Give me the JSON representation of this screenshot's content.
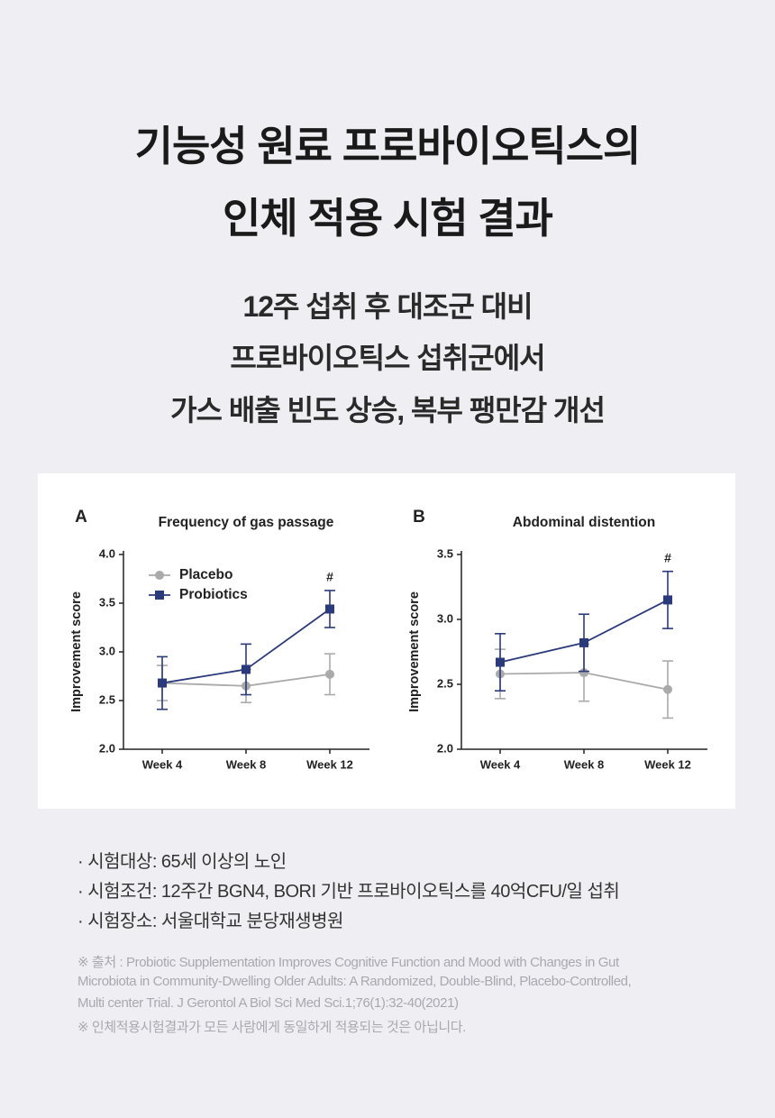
{
  "header": {
    "title_lines": [
      "기능성 원료 프로바이오틱스의",
      "인체 적용 시험 결과"
    ],
    "subtitle_lines": [
      "12주 섭취 후 대조군 대비",
      "프로바이오틱스 섭취군에서",
      "가스 배출 빈도 상승, 복부 팽만감 개선"
    ]
  },
  "chart_data": [
    {
      "type": "line",
      "panel": "A",
      "title": "Frequency of gas passage",
      "y_label": "Improvement score",
      "categories": [
        "Week 4",
        "Week 8",
        "Week 12"
      ],
      "series": [
        {
          "name": "Placebo",
          "color": "#aaaaaa",
          "marker": "circle",
          "values": [
            2.68,
            2.65,
            2.77
          ],
          "errors": [
            0.18,
            0.17,
            0.21
          ]
        },
        {
          "name": "Probiotics",
          "color": "#2b3a7a",
          "marker": "square",
          "values": [
            2.68,
            2.82,
            3.44
          ],
          "errors": [
            0.27,
            0.26,
            0.19
          ]
        }
      ],
      "ylim": [
        2.0,
        4.0
      ],
      "yticks": [
        {
          "value": 2,
          "label": "2.0"
        },
        2.5,
        {
          "value": 3,
          "label": "3.0"
        },
        3.5,
        {
          "value": 4,
          "label": "4.0"
        }
      ],
      "legend": "upper left",
      "annotation": "#"
    },
    {
      "type": "line",
      "panel": "B",
      "title": "Abdominal distention",
      "y_label": "Improvement score",
      "categories": [
        "Week 4",
        "Week 8",
        "Week 12"
      ],
      "series": [
        {
          "color": "#aaaaaa",
          "marker": "circle",
          "values": [
            2.58,
            2.59,
            2.46
          ],
          "errors": [
            0.19,
            0.22,
            0.22
          ]
        },
        {
          "color": "#2b3a7a",
          "marker": "square",
          "values": [
            2.67,
            2.82,
            3.15
          ],
          "errors": [
            0.22,
            0.22,
            0.22
          ]
        }
      ],
      "ylim": [
        2.0,
        3.5
      ],
      "yticks": [
        {
          "value": 2,
          "label": "2.0"
        },
        2.5,
        {
          "value": 3,
          "label": "3.0"
        },
        3.5
      ],
      "legend": false,
      "annotation": "#"
    }
  ],
  "details": [
    "· 시험대상: 65세 이상의 노인",
    "· 시험조건: 12주간 BGN4, BORI 기반 프로바이오틱스를 40억CFU/일 섭취",
    "· 시험장소: 서울대학교 분당재생병원"
  ],
  "source": [
    "※ 출처 : Probiotic Supplementation Improves Cognitive Function and Mood with Changes in Gut",
    "Microbiota in Community-Dwelling Older Adults: A Randomized, Double-Blind, Placebo-Controlled,",
    "Multi center Trial. J Gerontol A Biol Sci Med Sci.1;76(1):32-40(2021)",
    "※ 인체적용시험결과가 모든 사람에게 동일하게 적용되는 것은 아닙니다."
  ]
}
